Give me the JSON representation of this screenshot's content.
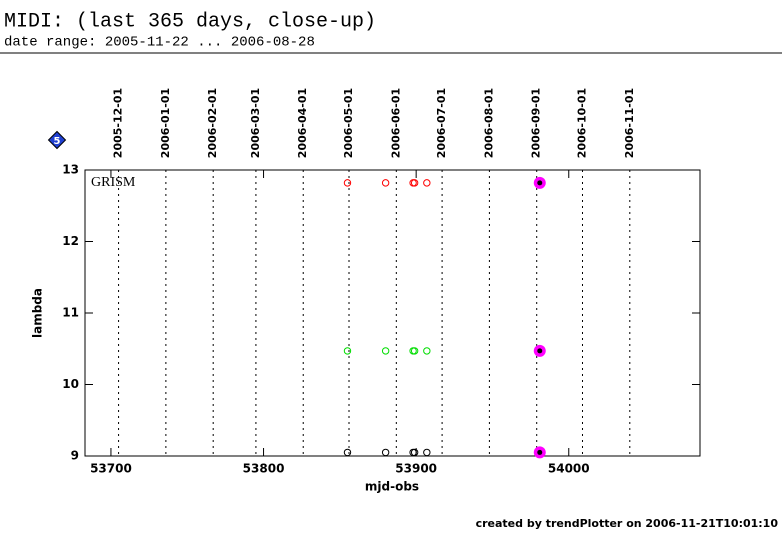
{
  "chart_data": {
    "type": "scatter",
    "title": "MIDI: (last 365 days, close-up)",
    "subtitle": "date range: 2005-11-22 ... 2006-08-28",
    "annotation": "GRISM",
    "badge": "5",
    "footer": "created by trendPlotter on 2006-11-21T10:01:10",
    "x_label": "mjd-obs",
    "y_label": "lambda",
    "xlim": [
      53683,
      54086
    ],
    "ylim": [
      9,
      13
    ],
    "xticks": [
      53700,
      53800,
      53900,
      54000
    ],
    "yticks": [
      9,
      10,
      11,
      12,
      13
    ],
    "date_markers": [
      {
        "value": 53705,
        "label": "2005-12-01"
      },
      {
        "value": 53736,
        "label": "2006-01-01"
      },
      {
        "value": 53767,
        "label": "2006-02-01"
      },
      {
        "value": 53795,
        "label": "2006-03-01"
      },
      {
        "value": 53826,
        "label": "2006-04-01"
      },
      {
        "value": 53856,
        "label": "2006-05-01"
      },
      {
        "value": 53887,
        "label": "2006-06-01"
      },
      {
        "value": 53917,
        "label": "2006-07-01"
      },
      {
        "value": 53948,
        "label": "2006-08-01"
      },
      {
        "value": 53979,
        "label": "2006-09-01"
      },
      {
        "value": 54009,
        "label": "2006-10-01"
      },
      {
        "value": 54040,
        "label": "2006-11-01"
      }
    ],
    "series": [
      {
        "color": "#ff0000",
        "marker": "open",
        "x": [
          53855,
          53880,
          53898,
          53899,
          53907
        ],
        "values": [
          12.82,
          12.82,
          12.82,
          12.82,
          12.82
        ]
      },
      {
        "color": "#00dd00",
        "marker": "open",
        "x": [
          53855,
          53880,
          53898,
          53899,
          53907
        ],
        "values": [
          10.47,
          10.47,
          10.47,
          10.47,
          10.47
        ]
      },
      {
        "color": "#000000",
        "marker": "open",
        "x": [
          53855,
          53880,
          53898,
          53899,
          53907
        ],
        "values": [
          9.05,
          9.05,
          9.05,
          9.05,
          9.05
        ]
      },
      {
        "color": "#ff00ff",
        "marker": "filled",
        "x": [
          53981,
          53981,
          53981
        ],
        "values": [
          12.82,
          10.47,
          9.05
        ]
      }
    ]
  }
}
